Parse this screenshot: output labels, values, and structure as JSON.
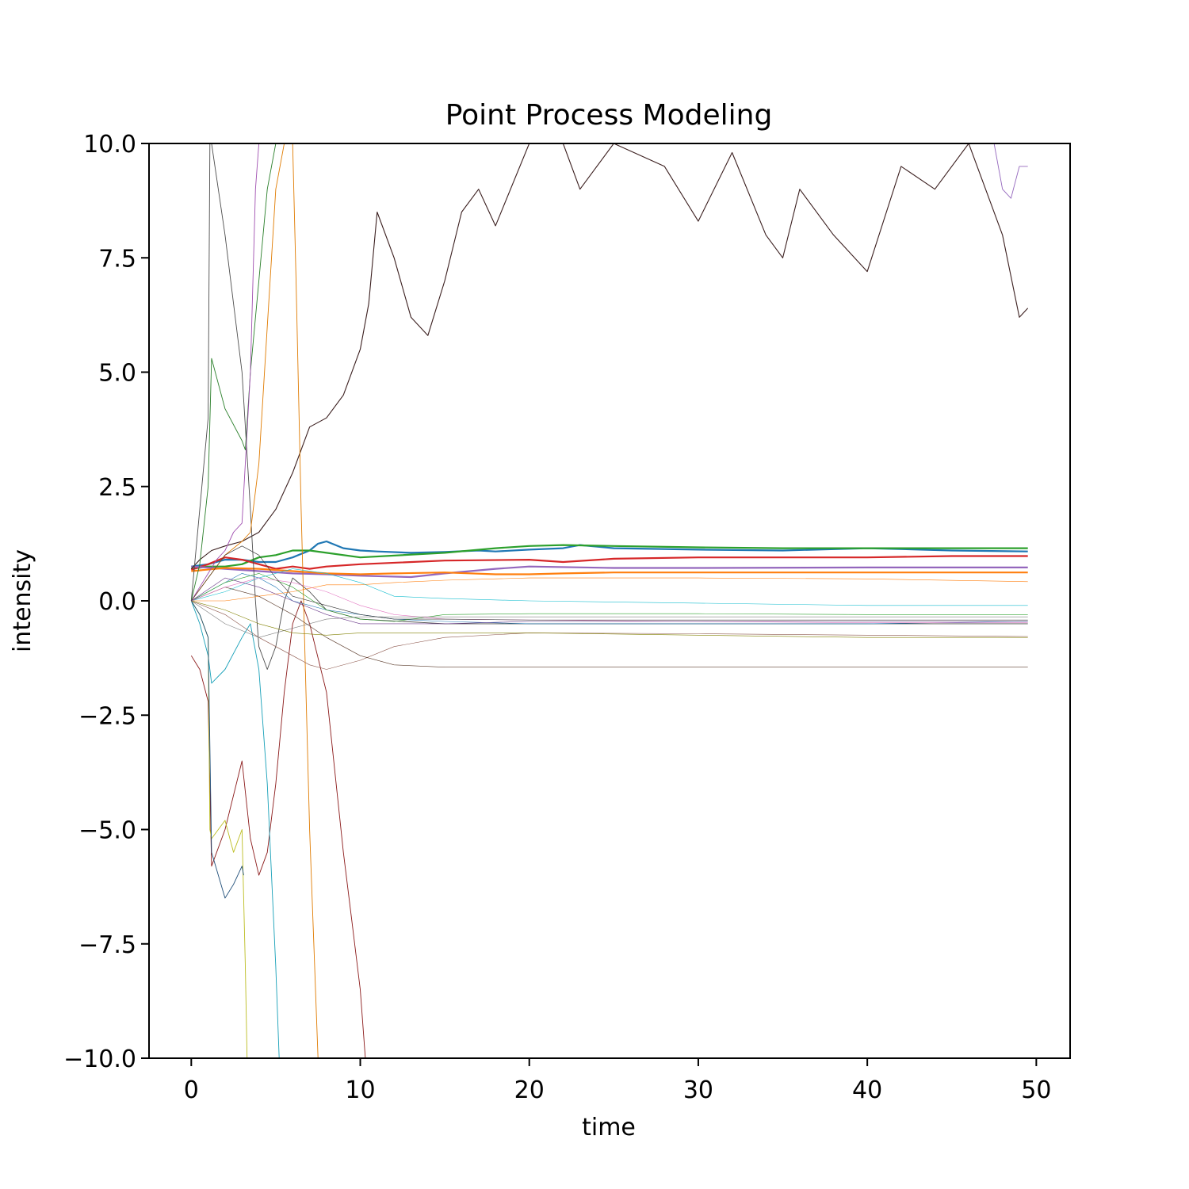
{
  "chart_data": {
    "type": "line",
    "title": "Point Process Modeling",
    "xlabel": "time",
    "ylabel": "intensity",
    "xlim": [
      -2.5,
      52
    ],
    "ylim": [
      -10,
      10
    ],
    "xticks": [
      0,
      10,
      20,
      30,
      40,
      50
    ],
    "yticks": [
      -10,
      -7.5,
      -5,
      -2.5,
      0,
      2.5,
      5,
      7.5,
      10
    ],
    "xtick_labels": [
      "0",
      "10",
      "20",
      "30",
      "40",
      "50"
    ],
    "ytick_labels": [
      "−10.0",
      "−7.5",
      "−5.0",
      "−2.5",
      "0.0",
      "2.5",
      "5.0",
      "7.5",
      "10.0"
    ],
    "grid": false,
    "legend": "none",
    "series": [
      {
        "color": "#1f77b4",
        "width": 2.2,
        "x": [
          0,
          1,
          2,
          3,
          4,
          5,
          6,
          7,
          7.5,
          8,
          9,
          10,
          11,
          13,
          15,
          17,
          18,
          20,
          22,
          23,
          25,
          30,
          35,
          40,
          45,
          49.5
        ],
        "y": [
          0.75,
          0.8,
          0.9,
          0.9,
          0.85,
          0.85,
          0.95,
          1.1,
          1.25,
          1.3,
          1.15,
          1.1,
          1.08,
          1.05,
          1.07,
          1.1,
          1.08,
          1.12,
          1.15,
          1.22,
          1.15,
          1.12,
          1.1,
          1.15,
          1.1,
          1.08
        ]
      },
      {
        "color": "#2ca02c",
        "width": 2.2,
        "x": [
          0,
          1,
          2,
          3,
          4,
          5,
          6,
          7,
          8,
          10,
          15,
          18,
          20,
          22,
          25,
          30,
          35,
          40,
          45,
          49.5
        ],
        "y": [
          0.7,
          0.75,
          0.75,
          0.8,
          0.95,
          1.0,
          1.1,
          1.1,
          1.05,
          0.95,
          1.05,
          1.15,
          1.2,
          1.22,
          1.2,
          1.17,
          1.15,
          1.15,
          1.15,
          1.15
        ]
      },
      {
        "color": "#d62728",
        "width": 2.2,
        "x": [
          0,
          1,
          2,
          3,
          4,
          5,
          6,
          7,
          8,
          10,
          15,
          20,
          22,
          25,
          30,
          35,
          40,
          45,
          49.5
        ],
        "y": [
          0.68,
          0.8,
          0.95,
          0.9,
          0.8,
          0.7,
          0.75,
          0.7,
          0.75,
          0.8,
          0.88,
          0.9,
          0.85,
          0.92,
          0.95,
          0.95,
          0.95,
          0.98,
          0.98
        ]
      },
      {
        "color": "#9467bd",
        "width": 2.2,
        "x": [
          0,
          2,
          4,
          6,
          8,
          10,
          13,
          15,
          18,
          20,
          25,
          30,
          40,
          49.5
        ],
        "y": [
          0.75,
          0.7,
          0.65,
          0.6,
          0.58,
          0.55,
          0.52,
          0.6,
          0.7,
          0.75,
          0.72,
          0.72,
          0.73,
          0.73
        ]
      },
      {
        "color": "#ff7f0e",
        "width": 2.2,
        "x": [
          0,
          2,
          4,
          6,
          8,
          10,
          12,
          15,
          18,
          20,
          22,
          25,
          30,
          40,
          49.5
        ],
        "y": [
          0.65,
          0.72,
          0.7,
          0.65,
          0.6,
          0.58,
          0.6,
          0.62,
          0.58,
          0.58,
          0.6,
          0.62,
          0.62,
          0.62,
          0.62
        ]
      },
      {
        "color": "#3b1f1f",
        "width": 1.1,
        "x": [
          0,
          0.5,
          1.2,
          2,
          3,
          4,
          5,
          6,
          7,
          8,
          9,
          10,
          10.5,
          11,
          12,
          13,
          14,
          15,
          16,
          17,
          18,
          20,
          22,
          23,
          25,
          28,
          30,
          32,
          34,
          35,
          36,
          38,
          40,
          42,
          44,
          46,
          48,
          49,
          49.5
        ],
        "y": [
          0.7,
          0.9,
          1.1,
          1.2,
          1.3,
          1.5,
          2.0,
          2.8,
          3.8,
          4.0,
          4.5,
          5.5,
          6.5,
          8.5,
          7.5,
          6.2,
          5.8,
          7.0,
          8.5,
          9.0,
          8.2,
          10.0,
          10.0,
          9.0,
          10.0,
          9.5,
          8.3,
          9.8,
          8.0,
          7.5,
          9.0,
          8.0,
          7.2,
          9.5,
          9.0,
          10.0,
          8.0,
          6.2,
          6.4
        ]
      },
      {
        "color": "#4d4d4d",
        "width": 0.9,
        "x": [
          0,
          0.5,
          1,
          1.1,
          1.2,
          2,
          3,
          3.5,
          3.8,
          4,
          4.5,
          5,
          5.5,
          6,
          7,
          8,
          10,
          15,
          20,
          30,
          40,
          49.5
        ],
        "y": [
          0.0,
          2.0,
          4.0,
          10.0,
          10.0,
          8.0,
          5.0,
          2.0,
          0.0,
          -1.0,
          -1.5,
          -1.0,
          0.0,
          0.5,
          0.2,
          -0.2,
          -0.4,
          -0.5,
          -0.5,
          -0.5,
          -0.5,
          -0.5
        ]
      },
      {
        "color": "#2a7f2a",
        "width": 0.9,
        "x": [
          0,
          0.5,
          1,
          1.2,
          2,
          3,
          3.2,
          3.5,
          4,
          4.5,
          5,
          5.5,
          6,
          8
        ],
        "y": [
          0.0,
          0.8,
          2.5,
          5.3,
          4.2,
          3.5,
          3.3,
          5.0,
          7.0,
          9.0,
          10.0,
          10.0,
          10.0,
          10.0
        ]
      },
      {
        "color": "#8b1a1a",
        "width": 0.9,
        "x": [
          0,
          0.5,
          1,
          1.2,
          1.5,
          2,
          3,
          3.5,
          4,
          4.5,
          5,
          5.5,
          6,
          6.5,
          7,
          8,
          9,
          9.5,
          10,
          10.3
        ],
        "y": [
          -1.2,
          -1.5,
          -2.2,
          -5.8,
          -5.5,
          -5.0,
          -3.5,
          -5.2,
          -6.0,
          -5.5,
          -4.0,
          -2.0,
          -0.5,
          0.0,
          -0.5,
          -2.0,
          -5.5,
          -7.0,
          -8.5,
          -10.0
        ]
      },
      {
        "color": "#17a0b8",
        "width": 0.9,
        "x": [
          0,
          0.5,
          1,
          1.2,
          2,
          3,
          3.5,
          4,
          4.5,
          5,
          5.2
        ],
        "y": [
          0.0,
          -0.5,
          -1.2,
          -1.8,
          -1.5,
          -0.8,
          -0.5,
          -1.5,
          -4.0,
          -8.0,
          -10.0
        ]
      },
      {
        "color": "#bcbd22",
        "width": 0.9,
        "x": [
          0,
          0.5,
          1,
          1.1,
          1.2,
          2,
          2.5,
          3,
          3.2,
          3.3
        ],
        "y": [
          0.0,
          -0.3,
          -0.8,
          -5.0,
          -5.2,
          -4.8,
          -5.5,
          -5.0,
          -8.0,
          -10.0
        ]
      },
      {
        "color": "#1f4e79",
        "width": 0.9,
        "x": [
          0,
          0.5,
          1,
          1.2,
          2,
          2.5,
          3,
          3.1
        ],
        "y": [
          0.0,
          -0.3,
          -0.8,
          -5.5,
          -6.5,
          -6.2,
          -5.8,
          -6.0
        ]
      },
      {
        "color": "#e07b00",
        "width": 0.9,
        "x": [
          0,
          1,
          2,
          3,
          3.5,
          4,
          4.5,
          5,
          5.5,
          6,
          6.2,
          6.5,
          7,
          7.5
        ],
        "y": [
          0.0,
          0.5,
          1.0,
          1.3,
          1.5,
          3.0,
          6.0,
          9.0,
          10.0,
          10.0,
          7.0,
          2.0,
          -5.0,
          -10.0
        ]
      },
      {
        "color": "#a04fb0",
        "width": 0.9,
        "x": [
          0,
          0.5,
          1,
          1.5,
          2,
          2.5,
          3,
          3.5,
          3.8,
          4
        ],
        "y": [
          0.0,
          0.3,
          0.6,
          0.9,
          1.1,
          1.5,
          1.7,
          5.0,
          9.0,
          10.0
        ]
      },
      {
        "color": "#9467bd",
        "width": 0.9,
        "x": [
          47.5,
          48,
          48.5,
          49,
          49.5
        ],
        "y": [
          10.0,
          9.0,
          8.8,
          9.5,
          9.5
        ]
      },
      {
        "color": "#1f77b4",
        "width": 0.6,
        "x": [
          0,
          1,
          2,
          3,
          4,
          5,
          6,
          8,
          10,
          12,
          15,
          20,
          30,
          40,
          49.5
        ],
        "y": [
          0.0,
          0.2,
          0.4,
          0.6,
          0.5,
          0.3,
          0.0,
          -0.2,
          -0.3,
          -0.4,
          -0.45,
          -0.5,
          -0.5,
          -0.5,
          -0.45
        ]
      },
      {
        "color": "#ff7f0e",
        "width": 0.6,
        "x": [
          0,
          2,
          4,
          6,
          8,
          10,
          12,
          15,
          20,
          30,
          40,
          49.5
        ],
        "y": [
          0.0,
          0.0,
          0.1,
          0.2,
          0.35,
          0.35,
          0.4,
          0.45,
          0.5,
          0.5,
          0.48,
          0.42
        ]
      },
      {
        "color": "#2ca02c",
        "width": 0.6,
        "x": [
          0,
          2,
          4,
          6,
          8,
          10,
          12,
          15,
          20,
          30,
          40,
          49.5
        ],
        "y": [
          0.0,
          0.4,
          0.6,
          0.3,
          -0.2,
          -0.4,
          -0.45,
          -0.3,
          -0.28,
          -0.28,
          -0.3,
          -0.3
        ]
      },
      {
        "color": "#17becf",
        "width": 0.6,
        "x": [
          0,
          2,
          4,
          6,
          8,
          10,
          12,
          15,
          20,
          30,
          40,
          49.5
        ],
        "y": [
          0.0,
          0.2,
          0.5,
          0.7,
          0.6,
          0.4,
          0.1,
          0.05,
          0.0,
          -0.05,
          -0.1,
          -0.1
        ]
      },
      {
        "color": "#8c564b",
        "width": 0.6,
        "x": [
          0,
          2,
          4,
          6,
          7,
          8,
          10,
          12,
          15,
          20,
          30,
          40,
          49.5
        ],
        "y": [
          0.0,
          -0.3,
          -0.8,
          -1.2,
          -1.4,
          -1.5,
          -1.3,
          -1.0,
          -0.8,
          -0.7,
          -0.72,
          -0.75,
          -0.78
        ]
      },
      {
        "color": "#5a3a2a",
        "width": 0.6,
        "x": [
          0,
          2,
          4,
          6,
          8,
          10,
          12,
          15,
          20,
          30,
          40,
          49.5
        ],
        "y": [
          0.0,
          0.3,
          0.1,
          -0.3,
          -0.8,
          -1.2,
          -1.4,
          -1.45,
          -1.45,
          -1.45,
          -1.45,
          -1.45
        ]
      },
      {
        "color": "#808000",
        "width": 0.6,
        "x": [
          0,
          2,
          4,
          6,
          8,
          10,
          12,
          15,
          20,
          30,
          40,
          49.5
        ],
        "y": [
          0.0,
          -0.2,
          -0.5,
          -0.7,
          -0.75,
          -0.7,
          -0.7,
          -0.7,
          -0.7,
          -0.75,
          -0.8,
          -0.8
        ]
      },
      {
        "color": "#e377c2",
        "width": 0.6,
        "x": [
          0,
          2,
          4,
          6,
          8,
          10,
          12,
          15,
          20,
          30,
          40,
          49.5
        ],
        "y": [
          0.0,
          0.3,
          0.5,
          0.4,
          0.2,
          -0.1,
          -0.3,
          -0.4,
          -0.42,
          -0.45,
          -0.48,
          -0.48
        ]
      },
      {
        "color": "#7f7f7f",
        "width": 0.6,
        "x": [
          0,
          2,
          4,
          6,
          8,
          10,
          12,
          15,
          20,
          30,
          40,
          49.5
        ],
        "y": [
          0.0,
          -0.5,
          -0.8,
          -0.6,
          -0.4,
          -0.35,
          -0.35,
          -0.35,
          -0.35,
          -0.35,
          -0.35,
          -0.35
        ]
      },
      {
        "color": "#6b3a8a",
        "width": 0.6,
        "x": [
          0,
          2,
          4,
          6,
          8,
          10,
          12,
          15,
          20,
          30,
          40,
          49.5
        ],
        "y": [
          0.0,
          0.5,
          0.3,
          0.0,
          -0.3,
          -0.5,
          -0.5,
          -0.5,
          -0.45,
          -0.45,
          -0.45,
          -0.45
        ]
      },
      {
        "color": "#333333",
        "width": 0.6,
        "x": [
          0,
          1,
          2,
          3,
          4,
          5,
          6,
          8,
          10,
          12,
          15,
          20,
          30,
          40,
          49.5
        ],
        "y": [
          0.0,
          0.5,
          1.0,
          1.2,
          1.0,
          0.5,
          0.1,
          -0.1,
          -0.3,
          -0.4,
          -0.4,
          -0.42,
          -0.42,
          -0.42,
          -0.42
        ]
      }
    ]
  }
}
